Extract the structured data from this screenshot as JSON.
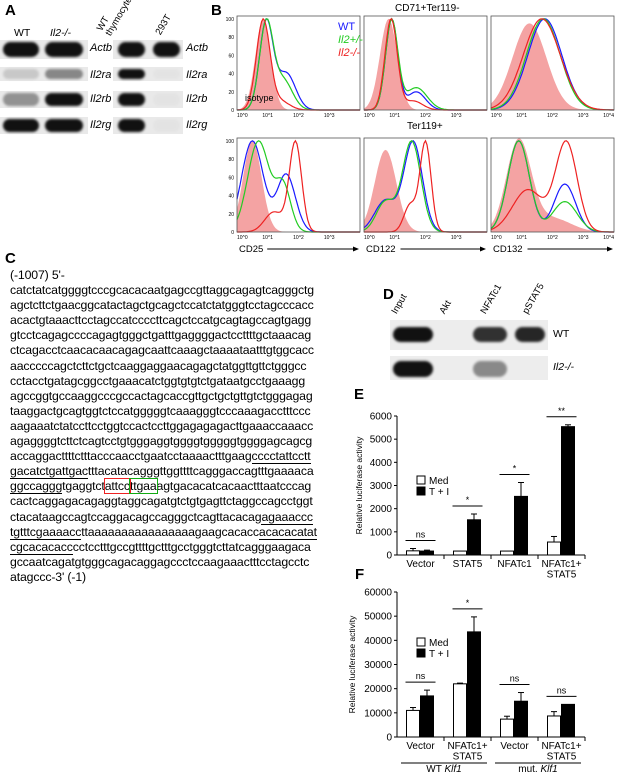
{
  "panel_labels": {
    "a": "A",
    "b": "B",
    "c": "C",
    "d": "D",
    "e": "E",
    "f": "F"
  },
  "panel_a": {
    "left_lanes": [
      "WT",
      "Il2-/-"
    ],
    "right_lanes": [
      "WT thymocytes",
      "293T"
    ],
    "genes": [
      "Actb",
      "Il2ra",
      "Il2rb",
      "Il2rg"
    ]
  },
  "panel_b": {
    "top_title": "CD71+Ter119-",
    "bottom_title": "Ter119+",
    "legend": [
      {
        "label": "WT",
        "color": "#1a1aff"
      },
      {
        "label": "Il2+/-",
        "color": "#22cc22"
      },
      {
        "label": "Il2-/-",
        "color": "#ee2222"
      }
    ],
    "isotype_label": "isotype",
    "isotype_color": "#f4a3a3",
    "y_ticks": [
      "0",
      "20",
      "40",
      "60",
      "80",
      "100"
    ],
    "x_ticks": [
      "10^0",
      "10^1",
      "10^2",
      "10^3",
      "10^4"
    ],
    "x_labels": [
      "CD25",
      "CD122",
      "CD132"
    ]
  },
  "panel_c": {
    "header": "(-1007) 5'-",
    "lines": [
      [
        {
          "t": "catctatcatggggtcccgcacacaatgagccgttaggcagagtcagggctg"
        }
      ],
      [
        {
          "t": "agctcttctgaacggcatactagctgcagctccatctatgggtcctagcccacc"
        }
      ],
      [
        {
          "t": "acactgtaaacttcctagccatccccttcagctccatgcagtagccagtgagg"
        }
      ],
      [
        {
          "t": "gtcctcagagccccagagtgggctgatttgaggggactccttttgctaaacag"
        }
      ],
      [
        {
          "t": "ctcagacctcaacacaacagagcaattcaaagctaaaataatttgtggcacc"
        }
      ],
      [
        {
          "t": "aacccccagctcttctgctcaaggaggaacagagctatggttgttctgggcc"
        }
      ],
      [
        {
          "t": "cctacctgatagcggcctgaaacatctggtgtgtctgataatgcctgaaagg"
        }
      ],
      [
        {
          "t": "agccggtgccaaggcccgccactagcaccgttgctgctgttgtctgggagag"
        }
      ],
      [
        {
          "t": "taaggactgcagtggtctccatgggggtcaaagggtcccaaagacctttccc"
        }
      ],
      [
        {
          "t": "aagaaatctatccttcctggtccactccttggagagagacttgaaaccaaacc"
        }
      ],
      [
        {
          "t": "agaggggtcttctcagtcctgtgggaggtggggtgggggtggggagcagcg"
        }
      ],
      [
        {
          "t": "accaggacttttctttacccaacctgaatcctaaaactttgaag"
        },
        {
          "t": "cccctattcctt",
          "m": "u"
        }
      ],
      [
        {
          "t": "gacatctgattgac",
          "m": "u"
        },
        {
          "t": "tttacatacagggttggttttcagggaccagtttgaaaaca"
        }
      ],
      [
        {
          "t": "ggccaggg",
          "m": "u"
        },
        {
          "t": "tgaggtct"
        },
        {
          "t": "attcc",
          "m": "rb"
        },
        {
          "t": "ttgaa",
          "m": "gb"
        },
        {
          "t": "agtgacacatcacaactttaatcccag"
        }
      ],
      [
        {
          "t": "cactcaggagacagaggtaggcagatgtctgtgagttctaggccagcctggt"
        }
      ],
      [
        {
          "t": "ctacataagccagtccaggacagccagggctcagttacacag"
        },
        {
          "t": "agaaaccc",
          "m": "u"
        }
      ],
      [
        {
          "t": "tgtttcgaaaacc",
          "m": "u"
        },
        {
          "t": "ttaaaaaaaaaaaaaaaagaagcacacc"
        },
        {
          "t": "acacacatat",
          "m": "u"
        }
      ],
      [
        {
          "t": "cgcacacacc",
          "m": "u"
        },
        {
          "t": "cctcctttgccgttttgctttgcctgggtcttatcagggaagaca"
        }
      ],
      [
        {
          "t": "gccaatcagatgtgggcagacaggagccctccaagaaactttcctagcctc"
        }
      ],
      [
        {
          "t": "atagccc-3' (-1)"
        }
      ]
    ]
  },
  "panel_d": {
    "lanes": [
      "Input",
      "Akt",
      "NFATc1",
      "pSTAT5"
    ],
    "rows": [
      "WT",
      "Il2-/-"
    ]
  },
  "chart_data": [
    {
      "type": "bar",
      "panel": "E",
      "ylabel": "Relative luciferase activity",
      "ylim": [
        0,
        6000
      ],
      "yticks": [
        0,
        1000,
        2000,
        3000,
        4000,
        5000,
        6000
      ],
      "categories": [
        "Vector",
        "STAT5",
        "NFATc1",
        "NFATc1+ STAT5"
      ],
      "series": [
        {
          "name": "Med",
          "color": "#ffffff",
          "values": [
            180,
            170,
            170,
            560
          ],
          "errors": [
            100,
            0,
            0,
            240
          ]
        },
        {
          "name": "T + I",
          "color": "#000000",
          "values": [
            170,
            1520,
            2530,
            5540
          ],
          "errors": [
            40,
            250,
            600,
            80
          ]
        }
      ],
      "significance": [
        "ns",
        "*",
        "*",
        "**"
      ],
      "groups": []
    },
    {
      "type": "bar",
      "panel": "F",
      "ylabel": "Relative luciferase activity",
      "ylim": [
        0,
        60000
      ],
      "yticks": [
        0,
        10000,
        20000,
        30000,
        40000,
        50000,
        60000
      ],
      "categories": [
        "Vector",
        "NFATc1+ STAT5",
        "Vector",
        "NFATc1+ STAT5"
      ],
      "series": [
        {
          "name": "Med",
          "color": "#ffffff",
          "values": [
            11000,
            22000,
            7400,
            8700
          ],
          "errors": [
            1200,
            300,
            1200,
            1800
          ]
        },
        {
          "name": "T + I",
          "color": "#000000",
          "values": [
            17000,
            43500,
            14800,
            13500
          ],
          "errors": [
            2400,
            6200,
            3600,
            0
          ]
        }
      ],
      "significance": [
        "ns",
        "*",
        "ns",
        "ns"
      ],
      "groups": [
        {
          "label": "WT",
          "italic": "Klf1"
        },
        {
          "label": "mut.",
          "italic": "Klf1"
        }
      ]
    }
  ]
}
